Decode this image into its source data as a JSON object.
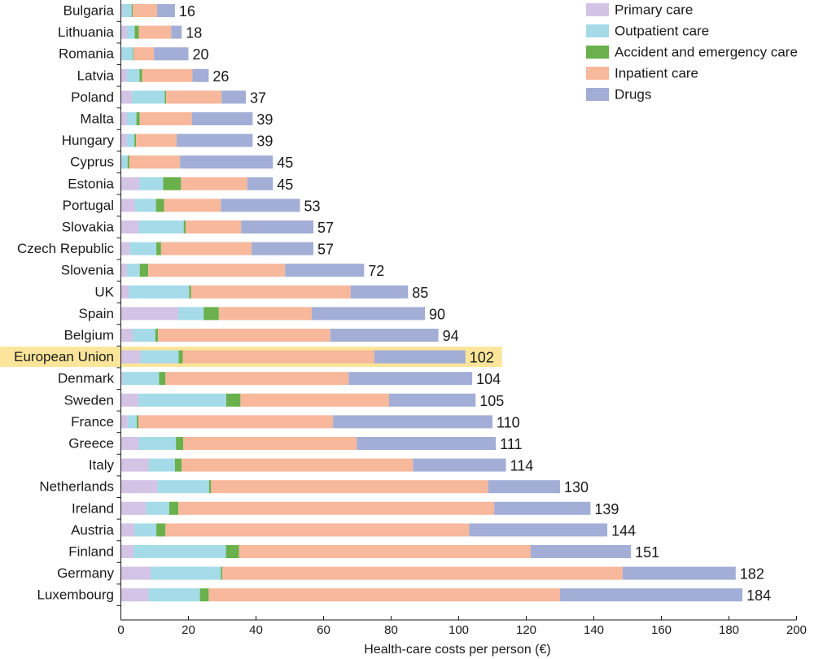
{
  "chart_data": {
    "type": "bar",
    "orientation": "horizontal",
    "stacked": true,
    "xlabel": "Health-care costs per person (€)",
    "xlim": [
      0,
      200
    ],
    "xticks": [
      0,
      20,
      40,
      60,
      80,
      100,
      120,
      140,
      160,
      180,
      200
    ],
    "highlight": "European Union",
    "highlight_color": "#fbe59a",
    "legend_position": "top-right",
    "categories": [
      "Bulgaria",
      "Lithuania",
      "Romania",
      "Latvia",
      "Poland",
      "Malta",
      "Hungary",
      "Cyprus",
      "Estonia",
      "Portugal",
      "Slovakia",
      "Czech Republic",
      "Slovenia",
      "UK",
      "Spain",
      "Belgium",
      "European Union",
      "Denmark",
      "Sweden",
      "France",
      "Greece",
      "Italy",
      "Netherlands",
      "Ireland",
      "Austria",
      "Finland",
      "Germany",
      "Luxembourg"
    ],
    "totals": [
      16,
      18,
      20,
      26,
      37,
      39,
      39,
      45,
      45,
      53,
      57,
      57,
      72,
      85,
      90,
      94,
      102,
      104,
      105,
      110,
      111,
      114,
      130,
      139,
      144,
      151,
      182,
      184
    ],
    "series": [
      {
        "name": "Primary care",
        "color": "#d3c3e5",
        "values": [
          0.5,
          1.8,
          0.3,
          1.8,
          3.3,
          1.8,
          1.8,
          0.3,
          5.5,
          4.2,
          5.3,
          2.7,
          1.8,
          2.3,
          17,
          3.5,
          5.8,
          0.5,
          5.2,
          2,
          5.3,
          8.3,
          10.8,
          7.5,
          4,
          3.8,
          8.8,
          8.2
        ]
      },
      {
        "name": "Outpatient care",
        "color": "#a5dbe8",
        "values": [
          2.7,
          2.3,
          3.3,
          3.7,
          9.7,
          2.8,
          2.2,
          1.7,
          7,
          6.2,
          13.3,
          7.8,
          3.8,
          17.9,
          7.5,
          6.7,
          11.3,
          10.8,
          26,
          2.7,
          11,
          7.7,
          15.3,
          6.8,
          6.5,
          27.3,
          20.8,
          15.2
        ]
      },
      {
        "name": "Accident and emergency care",
        "color": "#6ab04c",
        "values": [
          0.3,
          1.2,
          0.2,
          0.8,
          0.4,
          1,
          0.5,
          0.5,
          5.3,
          2.4,
          0.6,
          1.4,
          2.5,
          0.6,
          4.5,
          0.8,
          1.2,
          1.9,
          4.2,
          0.5,
          2.2,
          2,
          0.6,
          2.7,
          2.7,
          3.9,
          0.4,
          2.6
        ]
      },
      {
        "name": "Inpatient care",
        "color": "#f7b89c",
        "values": [
          7.2,
          9.6,
          6,
          14.9,
          16.4,
          15.4,
          12,
          15,
          19.6,
          16.8,
          16.4,
          26.8,
          40.5,
          47.2,
          27.5,
          51,
          56.7,
          54.2,
          44,
          57.6,
          51.3,
          68.5,
          82,
          93.5,
          89.9,
          86.3,
          118.5,
          104
        ]
      },
      {
        "name": "Drugs",
        "color": "#a2aed6",
        "values": [
          5.3,
          3.1,
          10.2,
          4.8,
          7.2,
          18,
          22.5,
          27.5,
          7.6,
          23.4,
          21.4,
          18.3,
          23.4,
          17,
          33.5,
          32,
          27,
          36.6,
          25.6,
          47.2,
          41.2,
          27.5,
          21.3,
          28.5,
          40.9,
          29.7,
          33.5,
          54
        ]
      }
    ]
  }
}
